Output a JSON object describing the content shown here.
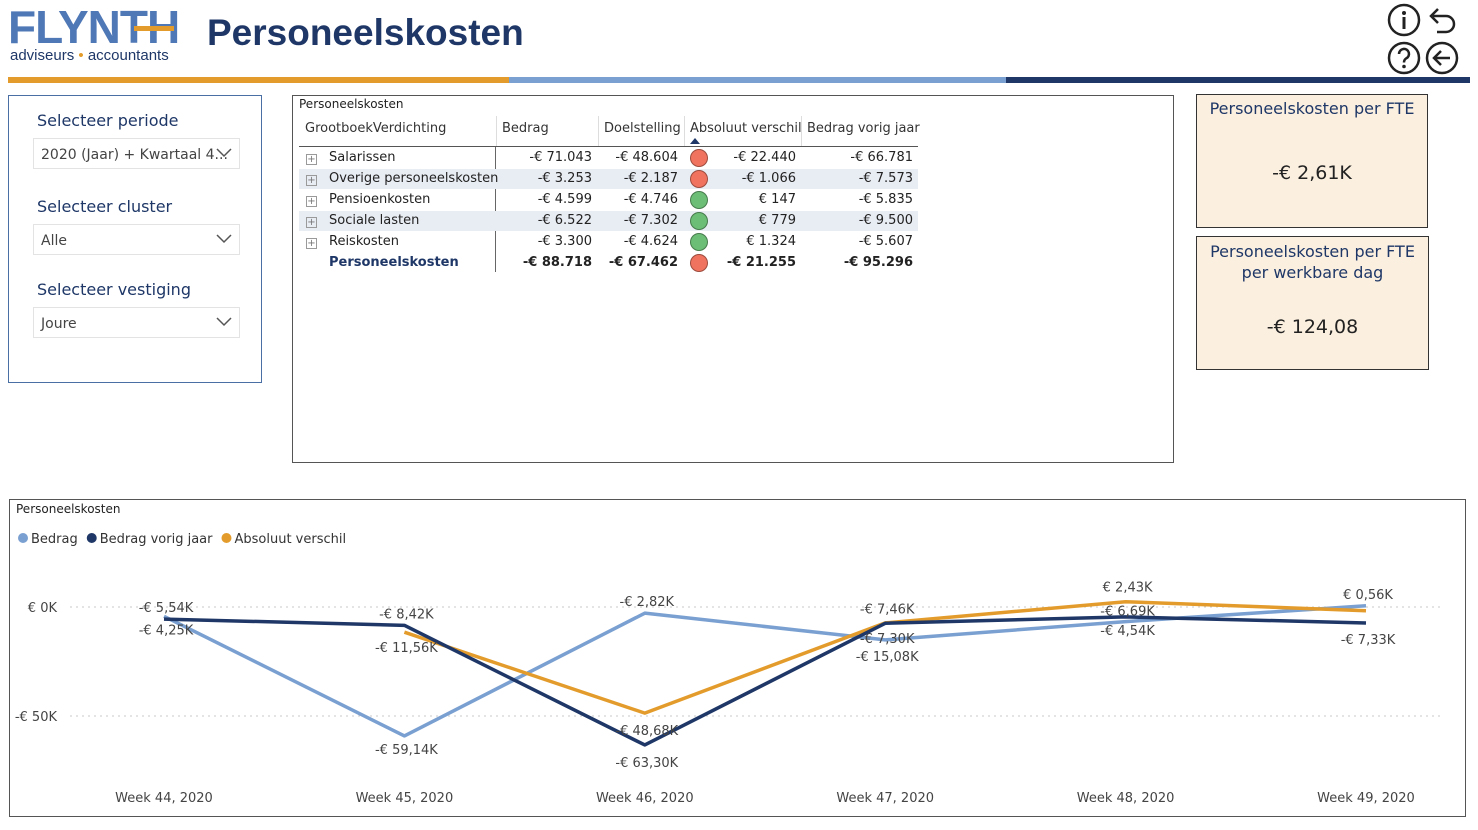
{
  "header": {
    "logo_word": "FLYNTH",
    "logo_sub_1": "adviseurs",
    "logo_sub_sep": "•",
    "logo_sub_2": "accountants",
    "title": "Personeelskosten",
    "colors": {
      "brand_blue": "#1e3767",
      "logo_blue": "#4f78b6",
      "accent_orange": "#e39c2b",
      "light_blue": "#7aa0d1"
    }
  },
  "slicers": [
    {
      "label": "Selecteer periode",
      "value": "2020 (Jaar) + Kwartaal 4..."
    },
    {
      "label": "Selecteer cluster",
      "value": "Alle"
    },
    {
      "label": "Selecteer vestiging",
      "value": "Joure"
    }
  ],
  "matrix": {
    "title": "Personeelskosten",
    "columns": [
      "GrootboekVerdichting",
      "Bedrag",
      "Doelstelling",
      "Absoluut verschil",
      "Bedrag vorig jaar"
    ],
    "rows": [
      {
        "name": "Salarissen",
        "bedrag": "-€ 71.043",
        "doel": "-€ 48.604",
        "status": "red",
        "verschil": "-€ 22.440",
        "vorig": "-€ 66.781"
      },
      {
        "name": "Overige personeelskosten",
        "bedrag": "-€ 3.253",
        "doel": "-€ 2.187",
        "status": "red",
        "verschil": "-€ 1.066",
        "vorig": "-€ 7.573"
      },
      {
        "name": "Pensioenkosten",
        "bedrag": "-€ 4.599",
        "doel": "-€ 4.746",
        "status": "green",
        "verschil": "€ 147",
        "vorig": "-€ 5.835"
      },
      {
        "name": "Sociale lasten",
        "bedrag": "-€ 6.522",
        "doel": "-€ 7.302",
        "status": "green",
        "verschil": "€ 779",
        "vorig": "-€ 9.500"
      },
      {
        "name": "Reiskosten",
        "bedrag": "-€ 3.300",
        "doel": "-€ 4.624",
        "status": "green",
        "verschil": "€ 1.324",
        "vorig": "-€ 5.607"
      }
    ],
    "total": {
      "name": "Personeelskosten",
      "bedrag": "-€ 88.718",
      "doel": "-€ 67.462",
      "status": "red",
      "verschil": "-€ 21.255",
      "vorig": "-€ 95.296"
    },
    "status_colors": {
      "red": "#f0735f",
      "green": "#6cbd76"
    }
  },
  "kpis": [
    {
      "title": "Personeelskosten per FTE",
      "value": "-€ 2,61K"
    },
    {
      "title": "Personeelskosten per FTE per werkbare dag",
      "title_line1": "Personeelskosten per FTE",
      "title_line2": "per werkbare dag",
      "value": "-€ 124,08"
    }
  ],
  "chart_data": {
    "type": "line",
    "title": "Personeelskosten",
    "categories": [
      "Week 44, 2020",
      "Week 45, 2020",
      "Week 46, 2020",
      "Week 47, 2020",
      "Week 48, 2020",
      "Week 49, 2020"
    ],
    "series": [
      {
        "name": "Bedrag",
        "color": "#7aa0d1",
        "values": [
          -4.25,
          -59.14,
          -2.82,
          -15.08,
          -6.69,
          0.56
        ],
        "labels": [
          "-€ 4,25K",
          "-€ 59,14K",
          "-€ 2,82K",
          "-€ 15,08K",
          "-€ 6,69K",
          "€ 0,56K"
        ]
      },
      {
        "name": "Bedrag vorig jaar",
        "color": "#1e3767",
        "values": [
          -5.54,
          -8.42,
          -63.3,
          -7.46,
          -4.54,
          -7.33
        ],
        "labels": [
          "-€ 5,54K",
          "-€ 8,42K",
          "-€ 63,30K",
          "-€ 7,46K",
          "-€ 4,54K",
          "-€ 7,33K"
        ]
      },
      {
        "name": "Absoluut verschil",
        "color": "#e39c2b",
        "values": [
          null,
          -11.56,
          -48.68,
          -7.3,
          2.43,
          -1.7
        ],
        "labels": [
          null,
          "-€ 11,56K",
          "-€ 48,68K",
          "-€ 7,30K",
          "€ 2,43K",
          null
        ]
      }
    ],
    "y_ticks": [
      {
        "value": 0,
        "label": "€ 0K"
      },
      {
        "value": -50,
        "label": "-€ 50K"
      }
    ],
    "ylim": [
      -70,
      5
    ],
    "legend_position": "top-left",
    "gridlines": true
  }
}
